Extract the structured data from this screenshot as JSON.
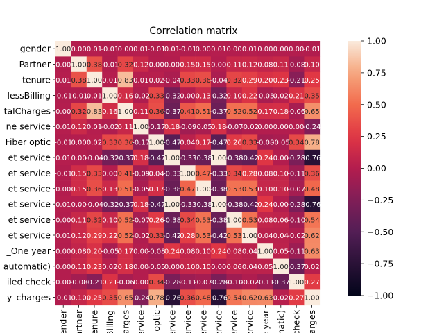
{
  "chart_data": {
    "type": "heatmap",
    "title": "Correlation matrix",
    "xlabel": "",
    "ylabel": "",
    "colorbar": {
      "range": [
        -1.0,
        1.0
      ],
      "ticks": [
        1.0,
        0.75,
        0.5,
        0.25,
        0.0,
        -0.25,
        -0.5,
        -0.75,
        -1.0
      ],
      "tick_labels": [
        "1.00",
        "0.75",
        "0.50",
        "0.25",
        "0.00",
        "−0.25",
        "−0.50",
        "−0.75",
        "−1.00"
      ],
      "colormap": "rocket"
    },
    "y_tick_labels": [
      "gender",
      "Partner",
      "tenure",
      "lessBilling",
      "talCharges",
      "ne service",
      "Fiber optic",
      "et service",
      "et service",
      "et service",
      "et service",
      "et service",
      "et service",
      "_One year",
      "automatic)",
      "iled check",
      "y_charges"
    ],
    "x_tick_labels": [
      "ender",
      "artner",
      "tenure",
      "Billing",
      "harges",
      "service",
      "r optic",
      "service",
      "service",
      "service",
      "service",
      "service",
      "service",
      "ne year",
      "matic)",
      "check",
      "harges"
    ],
    "values": [
      [
        1.0,
        0.0,
        0.01,
        -0.01,
        0.0,
        0.01,
        -0.01,
        0.01,
        -0.01,
        0.0,
        0.01,
        0.0,
        0.01,
        0.0,
        0.0,
        0.0,
        -0.01
      ],
      [
        0.0,
        1.0,
        0.38,
        -0.01,
        0.32,
        0.12,
        0.0,
        0.0,
        0.15,
        0.15,
        0.0,
        0.11,
        0.12,
        0.08,
        0.11,
        -0.08,
        0.1
      ],
      [
        0.01,
        0.38,
        1.0,
        0.01,
        0.83,
        0.01,
        0.02,
        -0.04,
        0.33,
        0.36,
        -0.04,
        0.32,
        0.29,
        0.2,
        0.23,
        -0.21,
        0.25
      ],
      [
        -0.01,
        -0.01,
        0.01,
        1.0,
        0.16,
        -0.02,
        0.33,
        -0.32,
        -0.0,
        0.13,
        -0.32,
        0.1,
        0.22,
        -0.05,
        0.02,
        0.21,
        0.35
      ],
      [
        0.0,
        0.32,
        0.83,
        0.16,
        1.0,
        0.11,
        0.36,
        -0.37,
        0.41,
        0.51,
        -0.37,
        0.52,
        0.52,
        0.17,
        0.18,
        -0.06,
        0.65
      ],
      [
        0.01,
        0.12,
        0.01,
        -0.02,
        0.11,
        1.0,
        -0.17,
        0.18,
        -0.09,
        -0.05,
        0.18,
        -0.07,
        -0.02,
        0.0,
        0.0,
        0.0,
        -0.24
      ],
      [
        -0.01,
        0.0,
        0.02,
        0.33,
        0.36,
        -0.17,
        1.0,
        -0.47,
        0.04,
        0.17,
        -0.47,
        0.26,
        0.33,
        -0.08,
        -0.05,
        0.34,
        0.78
      ],
      [
        0.01,
        0.0,
        -0.04,
        -0.32,
        -0.37,
        0.18,
        -0.47,
        1.0,
        -0.33,
        -0.38,
        1.0,
        -0.38,
        -0.42,
        0.24,
        0.0,
        -0.28,
        -0.76
      ],
      [
        -0.01,
        0.15,
        0.33,
        -0.0,
        0.41,
        -0.09,
        0.04,
        -0.33,
        1.0,
        0.47,
        -0.33,
        0.34,
        0.28,
        0.08,
        0.1,
        -0.11,
        0.36
      ],
      [
        0.0,
        0.15,
        0.36,
        0.13,
        0.51,
        -0.05,
        0.17,
        -0.38,
        0.47,
        1.0,
        -0.38,
        0.53,
        0.53,
        0.1,
        0.1,
        -0.07,
        0.48
      ],
      [
        0.01,
        0.0,
        -0.04,
        -0.32,
        -0.37,
        0.18,
        -0.47,
        1.0,
        -0.33,
        -0.38,
        1.0,
        -0.38,
        -0.42,
        0.24,
        0.0,
        -0.28,
        -0.76
      ],
      [
        0.0,
        0.11,
        0.32,
        0.1,
        0.52,
        -0.07,
        0.26,
        -0.38,
        0.34,
        0.53,
        -0.38,
        1.0,
        0.53,
        0.08,
        0.06,
        -0.1,
        0.54
      ],
      [
        0.01,
        0.12,
        0.29,
        0.22,
        0.52,
        -0.02,
        0.33,
        -0.42,
        0.28,
        0.53,
        -0.42,
        0.53,
        1.0,
        0.04,
        0.04,
        -0.02,
        0.62
      ],
      [
        0.0,
        0.08,
        0.2,
        -0.05,
        0.17,
        0.0,
        -0.08,
        0.24,
        0.08,
        0.1,
        0.24,
        0.08,
        0.04,
        1.0,
        0.05,
        -0.11,
        0.63
      ],
      [
        0.0,
        0.11,
        0.23,
        0.02,
        0.18,
        0.0,
        -0.05,
        0.0,
        0.1,
        0.1,
        0.0,
        0.06,
        0.04,
        0.05,
        1.0,
        -0.37,
        0.02
      ],
      [
        0.0,
        -0.08,
        -0.21,
        0.21,
        -0.06,
        0.0,
        0.34,
        -0.28,
        -0.11,
        -0.07,
        -0.28,
        -0.1,
        -0.02,
        -0.11,
        -0.37,
        1.0,
        0.27
      ],
      [
        -0.01,
        0.1,
        0.25,
        0.35,
        0.65,
        -0.24,
        0.78,
        -0.76,
        0.36,
        0.48,
        -0.76,
        0.54,
        0.62,
        0.63,
        0.02,
        0.27,
        1.0
      ]
    ]
  }
}
